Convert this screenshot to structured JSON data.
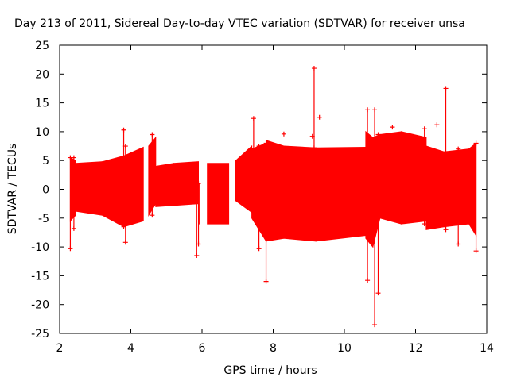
{
  "chart_data": {
    "type": "line",
    "title": "Day 213 of 2011, Sidereal Day-to-day VTEC variation (SDTVAR) for receiver unsa",
    "xlabel": "GPS time / hours",
    "ylabel": "SDTVAR / TECUs",
    "xlim": [
      2,
      14
    ],
    "ylim": [
      -25,
      25
    ],
    "xticks": [
      2,
      4,
      6,
      8,
      10,
      12,
      14
    ],
    "yticks": [
      -25,
      -20,
      -15,
      -10,
      -5,
      0,
      5,
      10,
      15,
      20,
      25
    ],
    "grid": false,
    "color": "#ff0000",
    "series": [
      {
        "name": "SDTVAR",
        "segments": [
          {
            "x0": 2.3,
            "x1": 2.45,
            "lo_start": -5.5,
            "lo_end": -4.5,
            "hi_start": 5.5,
            "hi_end": 5.0
          },
          {
            "x0": 2.45,
            "x1": 3.2,
            "lo_start": -3.8,
            "lo_end": -4.5,
            "hi_start": 4.5,
            "hi_end": 4.8
          },
          {
            "x0": 3.2,
            "x1": 3.8,
            "lo_start": -4.5,
            "lo_end": -6.5,
            "hi_start": 4.8,
            "hi_end": 5.8
          },
          {
            "x0": 3.8,
            "x1": 4.35,
            "lo_start": -6.5,
            "lo_end": -5.5,
            "hi_start": 5.8,
            "hi_end": 7.3
          },
          {
            "x0": 4.5,
            "x1": 4.7,
            "lo_start": -4.5,
            "lo_end": -2.5,
            "hi_start": 7.5,
            "hi_end": 9.0
          },
          {
            "x0": 4.7,
            "x1": 5.2,
            "lo_start": -3.0,
            "lo_end": -2.8,
            "hi_start": 4.0,
            "hi_end": 4.5
          },
          {
            "x0": 5.2,
            "x1": 5.9,
            "lo_start": -2.8,
            "lo_end": -2.5,
            "hi_start": 4.5,
            "hi_end": 4.8
          },
          {
            "x0": 5.9,
            "x1": 5.92,
            "lo_start": -6.0,
            "lo_end": -6.0,
            "hi_start": 1.0,
            "hi_end": 1.0
          },
          {
            "x0": 6.15,
            "x1": 6.75,
            "lo_start": -6.0,
            "lo_end": -6.0,
            "hi_start": 4.5,
            "hi_end": 4.5
          },
          {
            "x0": 6.95,
            "x1": 7.4,
            "lo_start": -2.0,
            "lo_end": -4.0,
            "hi_start": 5.0,
            "hi_end": 7.5
          },
          {
            "x0": 7.4,
            "x1": 7.8,
            "lo_start": -5.0,
            "lo_end": -9.0,
            "hi_start": 7.0,
            "hi_end": 8.0
          },
          {
            "x0": 7.8,
            "x1": 8.3,
            "lo_start": -9.0,
            "lo_end": -8.5,
            "hi_start": 8.5,
            "hi_end": 7.5
          },
          {
            "x0": 8.3,
            "x1": 9.2,
            "lo_start": -8.5,
            "lo_end": -9.0,
            "hi_start": 7.5,
            "hi_end": 7.2
          },
          {
            "x0": 9.2,
            "x1": 10.6,
            "lo_start": -9.0,
            "lo_end": -8.0,
            "hi_start": 7.2,
            "hi_end": 7.3
          },
          {
            "x0": 10.6,
            "x1": 10.8,
            "lo_start": -8.5,
            "lo_end": -10.0,
            "hi_start": 10.0,
            "hi_end": 9.0
          },
          {
            "x0": 10.8,
            "x1": 11.0,
            "lo_start": -10.0,
            "lo_end": -5.0,
            "hi_start": 9.0,
            "hi_end": 9.5
          },
          {
            "x0": 11.0,
            "x1": 11.6,
            "lo_start": -5.0,
            "lo_end": -6.0,
            "hi_start": 9.5,
            "hi_end": 10.0
          },
          {
            "x0": 11.6,
            "x1": 12.3,
            "lo_start": -6.0,
            "lo_end": -5.5,
            "hi_start": 10.0,
            "hi_end": 9.0
          },
          {
            "x0": 12.3,
            "x1": 12.8,
            "lo_start": -7.0,
            "lo_end": -6.5,
            "hi_start": 7.5,
            "hi_end": 6.5
          },
          {
            "x0": 12.8,
            "x1": 13.5,
            "lo_start": -6.5,
            "lo_end": -6.0,
            "hi_start": 6.5,
            "hi_end": 7.0
          },
          {
            "x0": 13.5,
            "x1": 13.7,
            "lo_start": -6.0,
            "lo_end": -8.0,
            "hi_start": 7.0,
            "hi_end": 8.0
          }
        ],
        "spikes": [
          {
            "x": 2.3,
            "lo": -10.3,
            "hi": 5.5
          },
          {
            "x": 2.4,
            "lo": -6.8,
            "hi": 5.5
          },
          {
            "x": 3.8,
            "lo": -6.5,
            "hi": 10.3
          },
          {
            "x": 3.85,
            "lo": -9.2,
            "hi": 7.5
          },
          {
            "x": 4.6,
            "lo": -4.5,
            "hi": 9.5
          },
          {
            "x": 5.85,
            "lo": -11.5,
            "hi": 1.0
          },
          {
            "x": 5.9,
            "lo": -9.5,
            "hi": 1.0
          },
          {
            "x": 7.45,
            "lo": -3.0,
            "hi": 12.3
          },
          {
            "x": 7.6,
            "lo": -10.3,
            "hi": 7.5
          },
          {
            "x": 7.8,
            "lo": -16.0,
            "hi": 8.0
          },
          {
            "x": 9.15,
            "lo": 7.2,
            "hi": 21.0
          },
          {
            "x": 10.65,
            "lo": -15.8,
            "hi": 13.8
          },
          {
            "x": 10.85,
            "lo": -23.5,
            "hi": 13.8
          },
          {
            "x": 10.95,
            "lo": -18.0,
            "hi": 9.5
          },
          {
            "x": 12.25,
            "lo": -6.0,
            "hi": 10.5
          },
          {
            "x": 12.85,
            "lo": -7.0,
            "hi": 17.5
          },
          {
            "x": 13.2,
            "lo": -9.5,
            "hi": 7.0
          },
          {
            "x": 13.7,
            "lo": -10.7,
            "hi": 8.0
          }
        ],
        "outliers": [
          {
            "x": 8.3,
            "y": 9.6
          },
          {
            "x": 9.1,
            "y": 9.2
          },
          {
            "x": 9.3,
            "y": 12.5
          },
          {
            "x": 11.35,
            "y": 10.8
          },
          {
            "x": 12.45,
            "y": -6.0
          },
          {
            "x": 12.6,
            "y": 11.2
          }
        ]
      }
    ]
  }
}
